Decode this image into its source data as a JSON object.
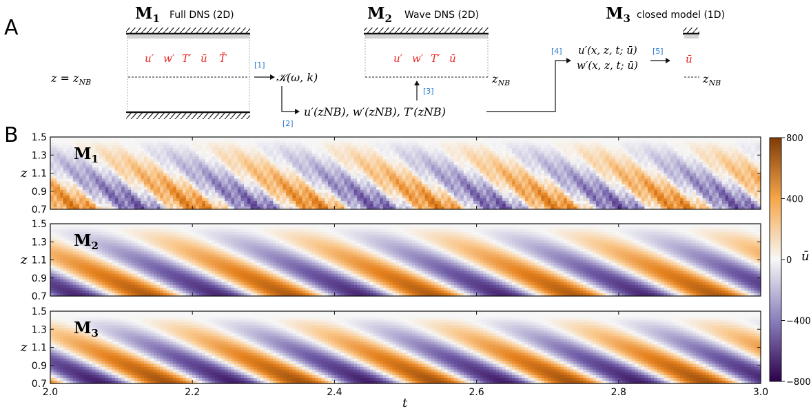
{
  "panel_a": {
    "label": "A",
    "m1": {
      "symbol": "M",
      "sub": "1",
      "caption": "Full DNS (2D)",
      "fields": [
        "u′",
        "w′",
        "T′",
        "ū",
        "T̄"
      ]
    },
    "m2": {
      "symbol": "M",
      "sub": "2",
      "caption": "Wave DNS (2D)",
      "fields": [
        "u′",
        "w′",
        "T′",
        "ū"
      ]
    },
    "m3": {
      "symbol": "M",
      "sub": "3",
      "caption": "closed model (1D)",
      "fields": [
        "ū"
      ]
    },
    "z_level_left": "z = z",
    "z_level_sub": "NB",
    "z_right_m2": "z",
    "z_right_m3": "z",
    "kernel": "𝒦(ω, k)",
    "boundary_values": "u′(z",
    "boundary_values_full": "u′(zNB), w′(zNB), T′(zNB)",
    "closed_u": "u′(x, z, t; ū)",
    "closed_w": "w′(x, z, t; ū)",
    "steps": [
      "[1]",
      "[2]",
      "[3]",
      "[4]",
      "[5]"
    ]
  },
  "panel_b": {
    "label": "B",
    "xlabel": "t",
    "ylabel": "z",
    "cbar_label": "ū",
    "cbar_ticks": [
      "800",
      "400",
      "0",
      "−400",
      "−800"
    ],
    "xticks": [
      "2.0",
      "2.2",
      "2.4",
      "2.6",
      "2.8",
      "3.0"
    ],
    "yticks": [
      "1.5",
      "1.3",
      "1.1",
      "0.9",
      "0.7"
    ],
    "rows": [
      {
        "symbol": "M",
        "sub": "1"
      },
      {
        "symbol": "M",
        "sub": "2"
      },
      {
        "symbol": "M",
        "sub": "3"
      }
    ]
  },
  "chart_data": [
    {
      "type": "heatmap",
      "title": "",
      "name_label": "M1",
      "x_range": [
        2.0,
        3.0
      ],
      "y_range": [
        0.7,
        1.5
      ],
      "color_range": [
        -800,
        800
      ],
      "colormap": [
        "#3b0f70",
        "#f7f7f7",
        "#7f3b08"
      ],
      "period": 0.17,
      "amplitude": 450,
      "xlabel": "t",
      "ylabel": "z"
    },
    {
      "type": "heatmap",
      "title": "",
      "name_label": "M2",
      "x_range": [
        2.0,
        3.0
      ],
      "y_range": [
        0.7,
        1.5
      ],
      "color_range": [
        -800,
        800
      ],
      "colormap": [
        "#3b0f70",
        "#f7f7f7",
        "#7f3b08"
      ],
      "period": 0.2,
      "amplitude": 650,
      "xlabel": "t",
      "ylabel": "z"
    },
    {
      "type": "heatmap",
      "title": "",
      "name_label": "M3",
      "x_range": [
        2.0,
        3.0
      ],
      "y_range": [
        0.7,
        1.5
      ],
      "color_range": [
        -800,
        800
      ],
      "colormap": [
        "#3b0f70",
        "#f7f7f7",
        "#7f3b08"
      ],
      "period": 0.19,
      "amplitude": 700,
      "xlabel": "t",
      "ylabel": "z"
    }
  ]
}
